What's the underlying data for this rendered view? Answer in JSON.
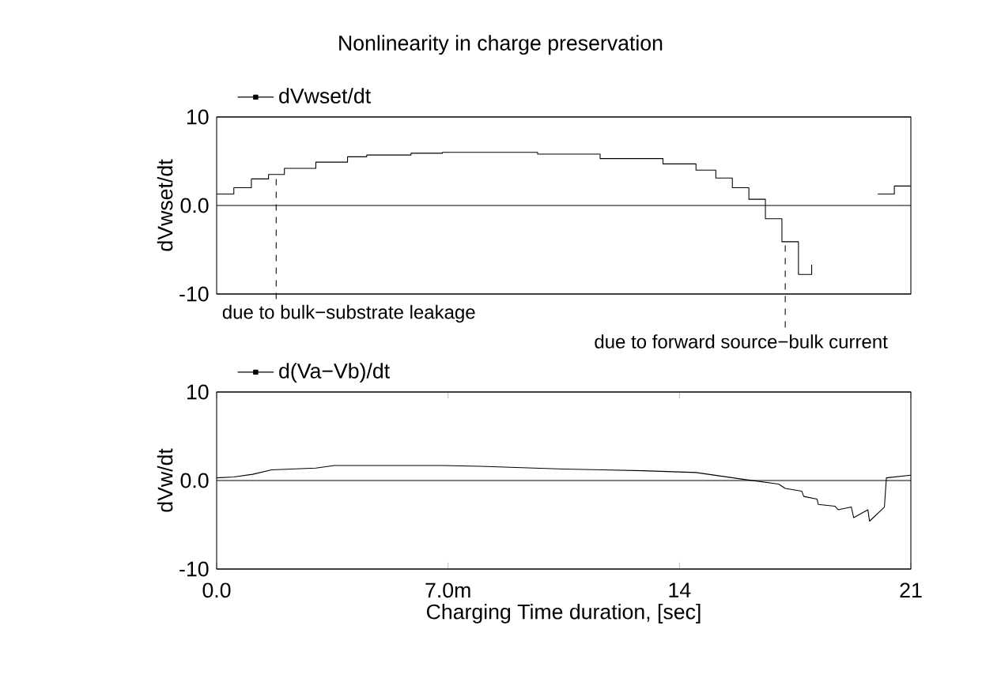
{
  "chart_data": [
    {
      "type": "step",
      "title": "Nonlinearity in charge preservation",
      "ylabel": "dVwset/dt",
      "series": [
        {
          "name": "dVwset/dt",
          "color": "#000000",
          "x": [
            0,
            0.52,
            1.05,
            1.57,
            2.05,
            3.0,
            3.96,
            4.54,
            5.88,
            6.83,
            8.37,
            9.71,
            11.6,
            13.5,
            14.5,
            15.1,
            15.6,
            16.1,
            16.6,
            17.1,
            17.6,
            18.0,
            18.3,
            20.0,
            20.5,
            21
          ],
          "values": [
            1.3,
            2.0,
            3.0,
            3.5,
            4.2,
            4.9,
            5.5,
            5.7,
            5.9,
            6.0,
            6.0,
            5.8,
            5.3,
            4.7,
            4.0,
            3.1,
            2.0,
            0.7,
            -1.5,
            -4.1,
            -7.8,
            -6.7,
            null,
            1.3,
            2.2,
            2.2
          ]
        }
      ],
      "xlim": [
        0,
        21
      ],
      "ylim": [
        -10,
        10
      ],
      "yticks": [
        -10,
        {
          "value": 0,
          "label": "0.0"
        },
        10
      ],
      "tick_labels": "y",
      "grid": "y",
      "legend": "top left",
      "annotations": [
        {
          "text": "due to bulk−substrate leakage",
          "x": 1.8,
          "y": 3.0
        },
        {
          "text": "due to forward source−bulk current",
          "x": 17.2,
          "y": -4.5
        }
      ]
    },
    {
      "type": "line",
      "ylabel": "dVw/dt",
      "xlabel": "Charging Time duration, [sec]",
      "series": [
        {
          "name": "d(Va−Vb)/dt",
          "color": "#000000",
          "x": [
            0,
            0.52,
            1.09,
            1.66,
            3.0,
            3.56,
            6.83,
            7.98,
            10.5,
            12.9,
            14.5,
            16.0,
            17.0,
            17.2,
            17.7,
            17.76,
            18.16,
            18.2,
            18.7,
            18.8,
            19.2,
            19.27,
            19.7,
            19.75,
            20.2,
            20.26,
            21
          ],
          "values": [
            0.3,
            0.4,
            0.7,
            1.2,
            1.4,
            1.7,
            1.7,
            1.6,
            1.3,
            1.1,
            0.9,
            0.1,
            -0.4,
            -0.9,
            -1.2,
            -1.8,
            -2.1,
            -2.7,
            -2.9,
            -3.3,
            -3.0,
            -4.2,
            -3.3,
            -4.6,
            -3.0,
            0.3,
            0.6
          ]
        }
      ],
      "xlim": [
        0,
        21
      ],
      "ylim": [
        -10,
        10
      ],
      "xticks": [
        {
          "value": 0,
          "label": "0.0"
        },
        {
          "value": 7,
          "label": "7.0m"
        },
        14,
        21
      ],
      "yticks": [
        -10,
        {
          "value": 0,
          "label": "0.0"
        },
        10
      ],
      "grid": "y",
      "legend": "top left"
    }
  ]
}
